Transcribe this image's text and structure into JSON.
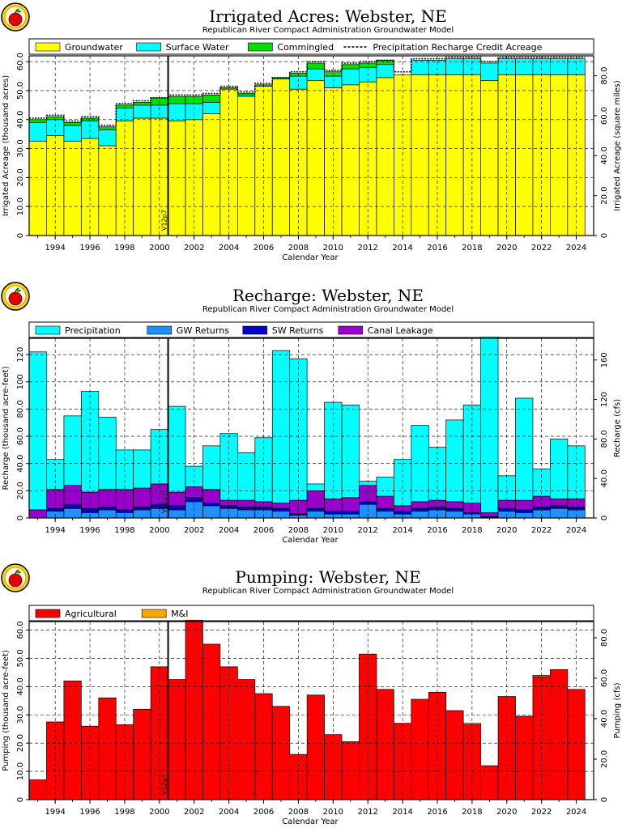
{
  "panels": [
    {
      "key": "acres",
      "title": "Irrigated Acres: Webster, NE",
      "subtitle": "Republican River Compact Administration Groundwater Model",
      "legend": [
        "Groundwater",
        "Surface Water",
        "Commingled",
        "Precipitation Recharge Credit Acreage"
      ],
      "xlabel": "Calendar Year",
      "ylabel": "Irrigated Acreage (thousand acres)",
      "y2label": "Irrigated Acreage (square miles)",
      "marker": "V12p7"
    },
    {
      "key": "recharge",
      "title": "Recharge: Webster, NE",
      "subtitle": "Republican River Compact Administration Groundwater Model",
      "legend": [
        "Precipitation",
        "GW Returns",
        "SW Returns",
        "Canal Leakage"
      ],
      "xlabel": "Calendar Year",
      "ylabel": "Recharge (thousand acre-feet)",
      "y2label": "Recharge (cfs)",
      "marker": "V12p7"
    },
    {
      "key": "pumping",
      "title": "Pumping: Webster, NE",
      "subtitle": "Republican River Compact Administration Groundwater Model",
      "legend": [
        "Agricultural",
        "M&I"
      ],
      "xlabel": "Calendar Year",
      "ylabel": "Pumping (thousand acre-feet)",
      "y2label": "Pumping (cfs)",
      "marker": "V12p7"
    }
  ],
  "chart_data": [
    {
      "type": "bar",
      "stacked": true,
      "title": "Irrigated Acres: Webster, NE",
      "subtitle": "Republican River Compact Administration Groundwater Model",
      "xlabel": "Calendar Year",
      "ylabel": "Irrigated Acreage (thousand acres)",
      "y2label": "Irrigated Acreage (square miles)",
      "x": [
        1993,
        1994,
        1995,
        1996,
        1997,
        1998,
        1999,
        2000,
        2001,
        2002,
        2003,
        2004,
        2005,
        2006,
        2007,
        2008,
        2009,
        2010,
        2011,
        2012,
        2013,
        2014,
        2015,
        2016,
        2017,
        2018,
        2019,
        2020,
        2021,
        2022,
        2023,
        2024
      ],
      "series": [
        {
          "name": "Groundwater",
          "color": "#ffff00",
          "values": [
            32.5,
            34.5,
            32.5,
            33.5,
            31.0,
            39.5,
            40.5,
            40.5,
            39.5,
            40.0,
            42.0,
            50.5,
            48.0,
            51.5,
            54.0,
            50.5,
            53.5,
            51.0,
            52.0,
            53.0,
            54.5,
            55.5,
            55.5,
            55.5,
            55.5,
            55.5,
            53.5,
            55.5,
            55.5,
            55.5,
            55.5,
            55.5
          ]
        },
        {
          "name": "Surface Water",
          "color": "#00ffff",
          "values": [
            6.5,
            5.5,
            5.5,
            6.0,
            5.5,
            4.5,
            4.5,
            4.5,
            6.0,
            5.5,
            4.0,
            0.0,
            0.5,
            0.0,
            0.0,
            4.5,
            4.0,
            4.0,
            5.5,
            5.0,
            4.5,
            0.0,
            5.0,
            5.0,
            5.5,
            5.5,
            6.0,
            5.5,
            5.5,
            5.5,
            5.5,
            5.5
          ]
        },
        {
          "name": "Commingled",
          "color": "#00e000",
          "values": [
            1.0,
            1.0,
            1.0,
            1.0,
            1.0,
            1.0,
            1.0,
            2.5,
            2.5,
            2.5,
            2.5,
            0.5,
            0.5,
            0.5,
            0.5,
            1.0,
            2.0,
            1.5,
            1.5,
            1.5,
            1.5,
            0.0,
            0.0,
            0.0,
            0.0,
            0.0,
            0.0,
            0.0,
            0.0,
            0.0,
            0.0,
            0.0
          ]
        },
        {
          "name": "Precipitation Recharge Credit Acreage",
          "type": "line",
          "values": [
            40.5,
            41.5,
            39.5,
            41.0,
            38.0,
            45.5,
            46.5,
            47.5,
            48.5,
            48.5,
            49.0,
            51.5,
            49.5,
            52.5,
            54.5,
            56.5,
            60.0,
            57.0,
            59.5,
            60.0,
            60.5,
            56.5,
            61.0,
            61.0,
            61.5,
            61.5,
            60.0,
            61.5,
            61.5,
            61.5,
            61.5,
            61.5
          ]
        }
      ],
      "ylim": [
        0,
        62
      ],
      "yticks": [
        0,
        10.0,
        20.0,
        30.0,
        40.0,
        50.0,
        60.0
      ],
      "y2ticks": [
        0,
        20.0,
        40.0,
        60.0,
        80.0
      ],
      "xticks": [
        1994,
        1996,
        1998,
        2000,
        2002,
        2004,
        2006,
        2008,
        2010,
        2012,
        2014,
        2016,
        2018,
        2020,
        2022,
        2024
      ],
      "marker_year": 2000.5,
      "marker_label": "V12p7",
      "grid": true,
      "legend": "top"
    },
    {
      "type": "bar",
      "stacked": true,
      "title": "Recharge: Webster, NE",
      "subtitle": "Republican River Compact Administration Groundwater Model",
      "xlabel": "Calendar Year",
      "ylabel": "Recharge (thousand acre-feet)",
      "y2label": "Recharge (cfs)",
      "x": [
        1993,
        1994,
        1995,
        1996,
        1997,
        1998,
        1999,
        2000,
        2001,
        2002,
        2003,
        2004,
        2005,
        2006,
        2007,
        2008,
        2009,
        2010,
        2011,
        2012,
        2013,
        2014,
        2015,
        2016,
        2017,
        2018,
        2019,
        2020,
        2021,
        2022,
        2023,
        2024
      ],
      "series": [
        {
          "name": "GW Returns",
          "color": "#1e90ff",
          "values": [
            0,
            5,
            7,
            4,
            6,
            4,
            6,
            7,
            6,
            12,
            9,
            7,
            6,
            6,
            5,
            2,
            5,
            3,
            3,
            10,
            5,
            3,
            5,
            6,
            5,
            3,
            0,
            5,
            4,
            6,
            7,
            6
          ]
        },
        {
          "name": "SW Returns",
          "color": "#0000cd",
          "values": [
            0,
            2,
            3,
            3,
            2,
            2,
            2,
            3,
            3,
            3,
            2,
            2,
            2,
            2,
            2,
            1,
            2,
            2,
            2,
            2,
            2,
            2,
            2,
            2,
            2,
            1,
            1,
            2,
            2,
            2,
            2,
            2
          ]
        },
        {
          "name": "Canal Leakage",
          "color": "#9900cc",
          "values": [
            6,
            14,
            14,
            12,
            13,
            15,
            14,
            15,
            10,
            8,
            10,
            4,
            5,
            4,
            4,
            10,
            13,
            9,
            10,
            12,
            9,
            4,
            5,
            5,
            5,
            7,
            3,
            6,
            7,
            8,
            5,
            6
          ]
        },
        {
          "name": "Precipitation",
          "color": "#00ffff",
          "values": [
            116,
            22,
            51,
            74,
            53,
            29,
            28,
            40,
            63,
            15,
            32,
            49,
            35,
            47,
            112,
            104,
            5,
            71,
            68,
            3,
            14,
            34,
            56,
            39,
            60,
            72,
            129,
            18,
            75,
            20,
            44,
            39
          ]
        }
      ],
      "ylim": [
        0,
        132
      ],
      "yticks": [
        0,
        20.0,
        40.0,
        60.0,
        80.0,
        100,
        120
      ],
      "y2ticks": [
        0,
        40.0,
        80.0,
        120,
        160
      ],
      "xticks": [
        1994,
        1996,
        1998,
        2000,
        2002,
        2004,
        2006,
        2008,
        2010,
        2012,
        2014,
        2016,
        2018,
        2020,
        2022,
        2024
      ],
      "marker_year": 2000.5,
      "marker_label": "V12p7",
      "grid": true,
      "legend": "top"
    },
    {
      "type": "bar",
      "stacked": true,
      "title": "Pumping: Webster, NE",
      "subtitle": "Republican River Compact Administration Groundwater Model",
      "xlabel": "Calendar Year",
      "ylabel": "Pumping (thousand acre-feet)",
      "y2label": "Pumping (cfs)",
      "x": [
        1993,
        1994,
        1995,
        1996,
        1997,
        1998,
        1999,
        2000,
        2001,
        2002,
        2003,
        2004,
        2005,
        2006,
        2007,
        2008,
        2009,
        2010,
        2011,
        2012,
        2013,
        2014,
        2015,
        2016,
        2017,
        2018,
        2019,
        2020,
        2021,
        2022,
        2023,
        2024
      ],
      "series": [
        {
          "name": "Agricultural",
          "color": "#ff0000",
          "values": [
            7,
            27.5,
            42,
            26,
            36,
            26.5,
            32,
            47,
            42.5,
            63.5,
            55,
            47,
            42.5,
            37.5,
            33,
            16,
            37,
            23,
            20.5,
            51.5,
            39,
            27,
            35.5,
            38,
            31.5,
            26.5,
            12,
            36.5,
            29.5,
            43.5,
            46,
            39
          ]
        },
        {
          "name": "M&I",
          "color": "#ffa500",
          "values": [
            0,
            0,
            0,
            0,
            0,
            0,
            0,
            0,
            0,
            0,
            0,
            0,
            0,
            0,
            0,
            0,
            0,
            0,
            0,
            0,
            0,
            0,
            0,
            0,
            0,
            0.5,
            0,
            0,
            0,
            0.5,
            0,
            0
          ]
        }
      ],
      "ylim": [
        0,
        63
      ],
      "yticks": [
        0,
        10.0,
        20.0,
        30.0,
        40.0,
        50.0,
        60.0
      ],
      "y2ticks": [
        0,
        20.0,
        40.0,
        60.0,
        80.0
      ],
      "xticks": [
        1994,
        1996,
        1998,
        2000,
        2002,
        2004,
        2006,
        2008,
        2010,
        2012,
        2014,
        2016,
        2018,
        2020,
        2022,
        2024
      ],
      "marker_year": 2000.5,
      "marker_label": "V12p7",
      "grid": true,
      "legend": "top"
    }
  ]
}
